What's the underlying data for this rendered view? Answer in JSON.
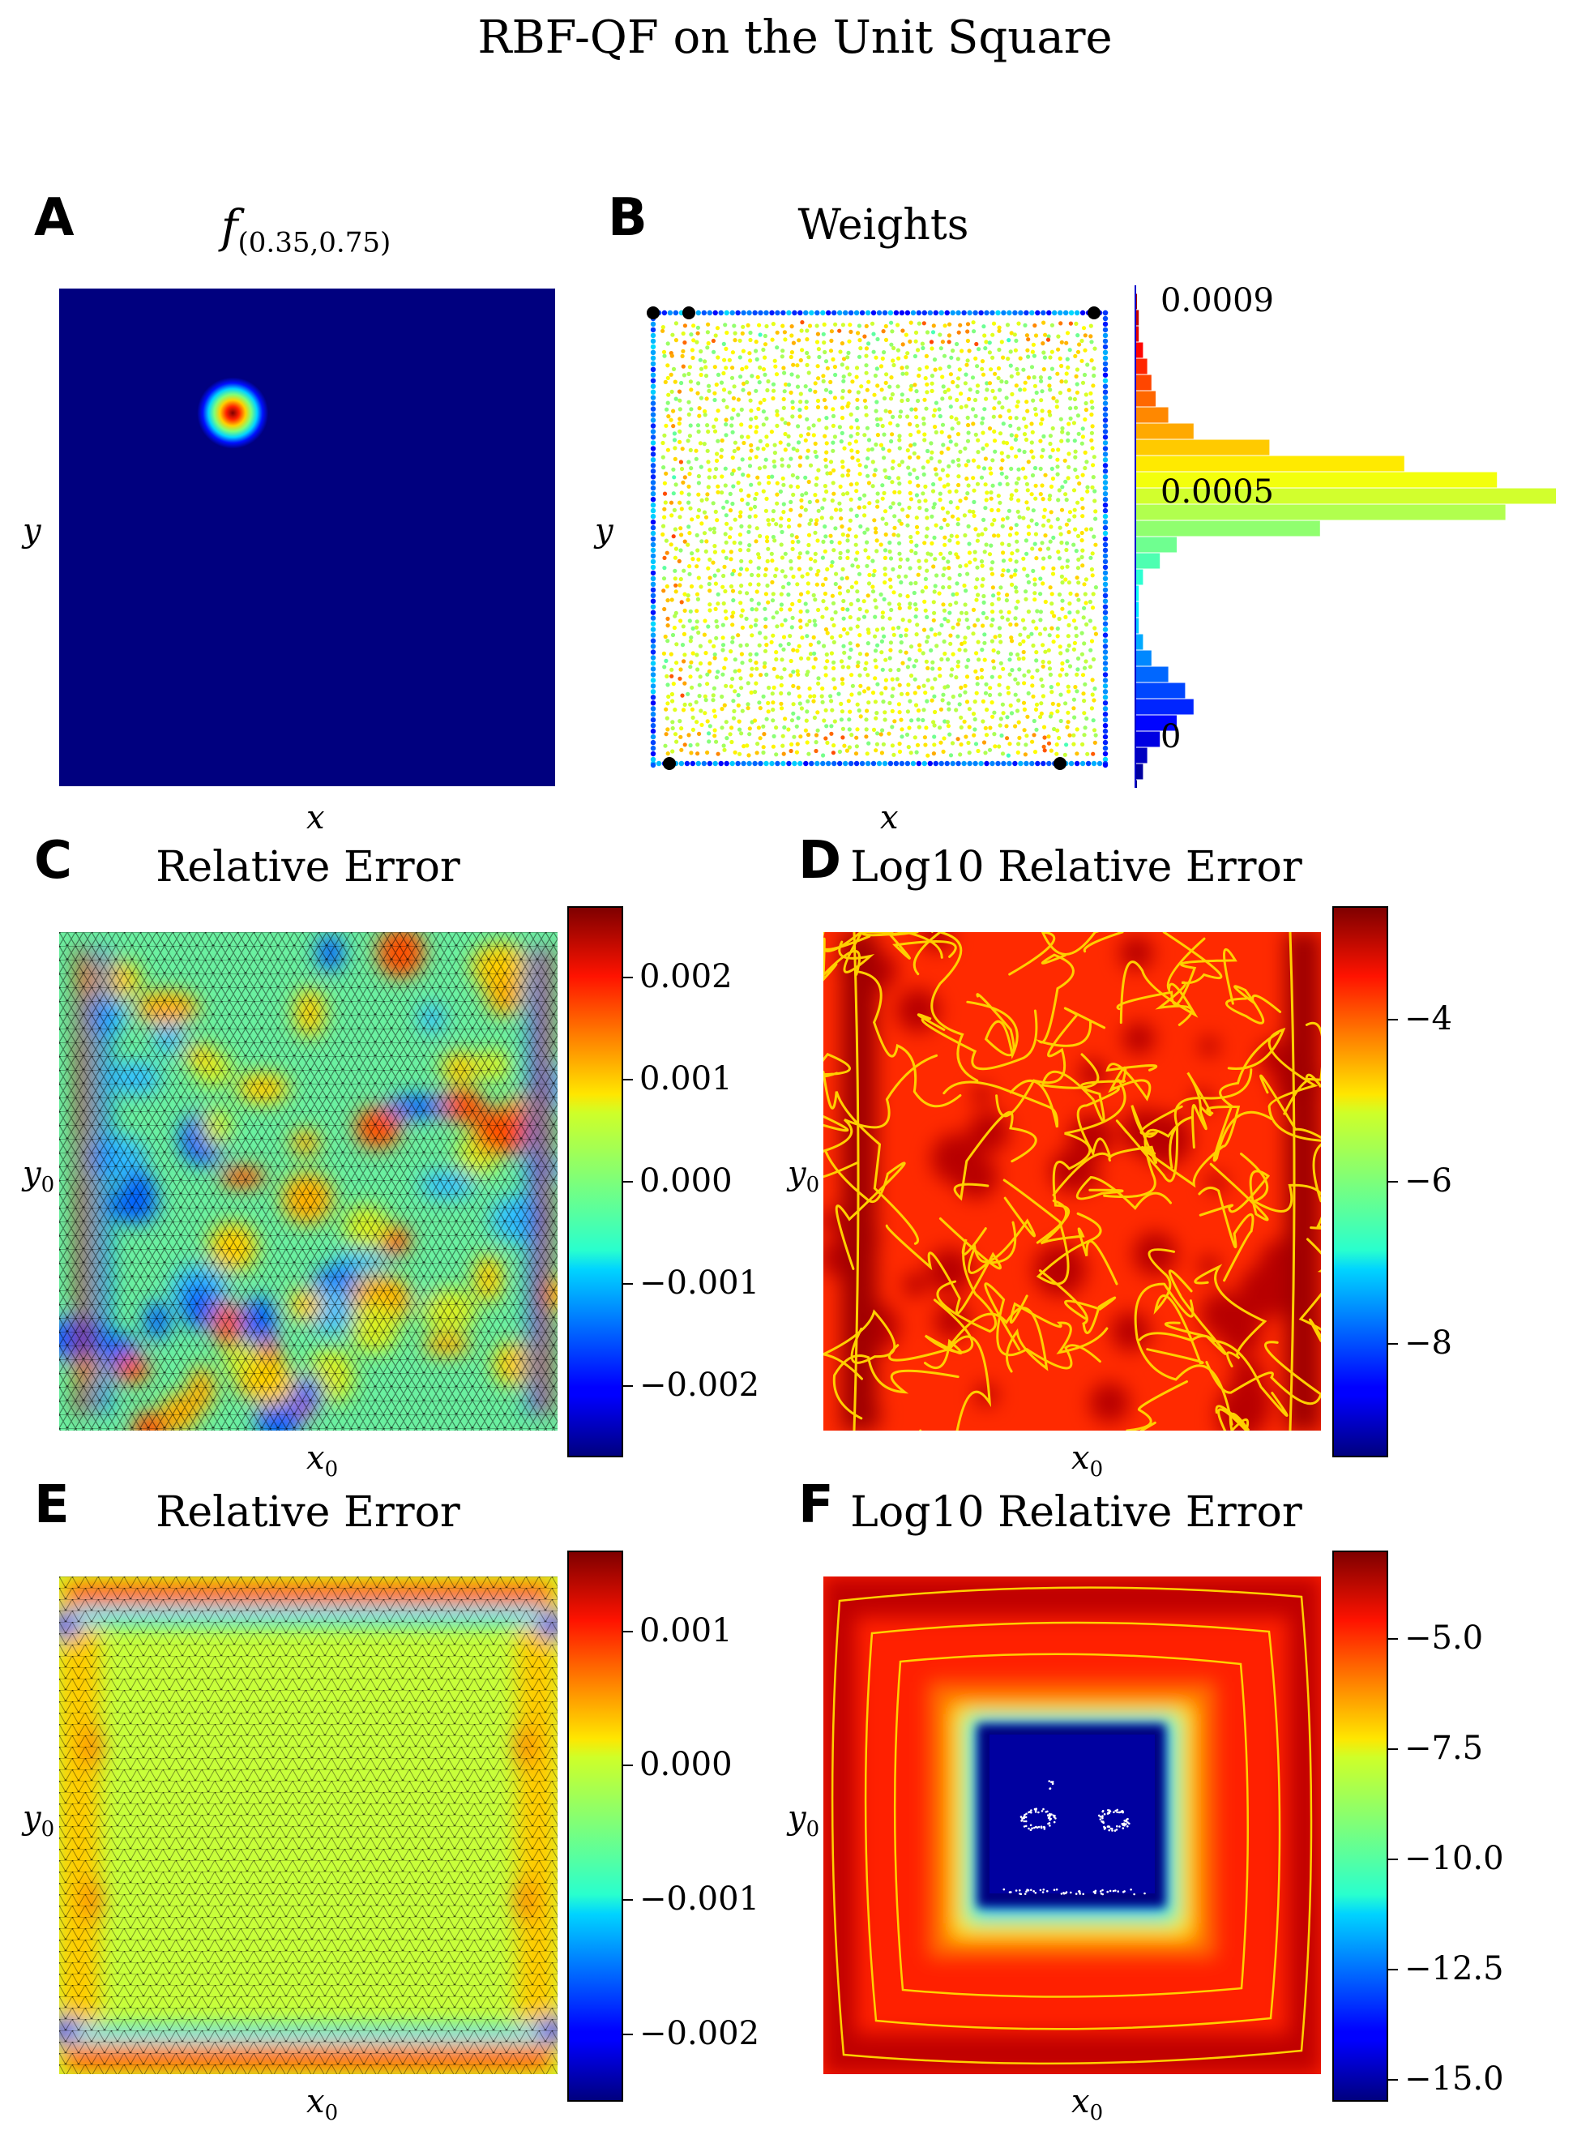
{
  "suptitle": "RBF-QF on the Unit Square",
  "colors": {
    "jet_bg": "#00007f"
  },
  "panels": {
    "A": {
      "letter": "A",
      "title_base": "f",
      "title_sub": "(0.35,0.75)",
      "xlabel": "x",
      "ylabel": "y"
    },
    "B": {
      "letter": "B",
      "title": "Weights",
      "xlabel": "x",
      "ylabel": "y"
    },
    "C": {
      "letter": "C",
      "title": "Relative Error",
      "xlabel_base": "x",
      "xlabel_sub": "0",
      "ylabel_base": "y",
      "ylabel_sub": "0"
    },
    "D": {
      "letter": "D",
      "title": "Log10 Relative Error",
      "xlabel_base": "x",
      "xlabel_sub": "0",
      "ylabel_base": "y",
      "ylabel_sub": "0"
    },
    "E": {
      "letter": "E",
      "title": "Relative Error",
      "xlabel_base": "x",
      "xlabel_sub": "0",
      "ylabel_base": "y",
      "ylabel_sub": "0"
    },
    "F": {
      "letter": "F",
      "title": "Log10 Relative Error",
      "xlabel_base": "x",
      "xlabel_sub": "0",
      "ylabel_base": "y",
      "ylabel_sub": "0"
    }
  },
  "chart_data": [
    {
      "panel": "A",
      "type": "heatmap",
      "function": "gaussian bump",
      "center": [
        0.35,
        0.75
      ],
      "xlim": [
        0,
        1
      ],
      "ylim": [
        0,
        1
      ],
      "colormap": "jet"
    },
    {
      "panel": "B",
      "type": "scatter",
      "colormap": "jet",
      "colorbar_type": "histogram",
      "colorbar_ticks": [
        "0.0009",
        "0.0005",
        "0"
      ],
      "histogram": {
        "bin_centers": [
          0.0,
          3e-05,
          6e-05,
          9e-05,
          0.00012,
          0.00015,
          0.00018,
          0.00021,
          0.00024,
          0.00027,
          0.0003,
          0.00033,
          0.00036,
          0.00039,
          0.00042,
          0.00045,
          0.00048,
          0.00051,
          0.00054,
          0.00057,
          0.0006,
          0.00063,
          0.00066,
          0.00069,
          0.00072,
          0.00075,
          0.00078,
          0.00081,
          0.00084,
          0.00087,
          0.0009
        ],
        "counts": [
          0.0,
          0.02,
          0.03,
          0.06,
          0.1,
          0.14,
          0.12,
          0.08,
          0.04,
          0.02,
          0.01,
          0.01,
          0.01,
          0.02,
          0.06,
          0.1,
          0.44,
          0.88,
          1.0,
          0.86,
          0.64,
          0.32,
          0.14,
          0.08,
          0.05,
          0.04,
          0.03,
          0.02,
          0.01,
          0.01,
          0.005
        ]
      },
      "highlighted_points": 5
    },
    {
      "panel": "C",
      "type": "heatmap",
      "colormap": "jet",
      "clim": [
        -0.0027,
        0.0027
      ],
      "colorbar_ticks": [
        "0.002",
        "0.001",
        "0.000",
        "−0.001",
        "−0.002"
      ]
    },
    {
      "panel": "D",
      "type": "heatmap",
      "colormap": "jet",
      "clim": [
        -9.4,
        -2.6
      ],
      "colorbar_ticks": [
        "−4",
        "−6",
        "−8"
      ]
    },
    {
      "panel": "E",
      "type": "heatmap",
      "colormap": "jet",
      "clim": [
        -0.0025,
        0.0016
      ],
      "colorbar_ticks": [
        "0.001",
        "0.000",
        "−0.001",
        "−0.002"
      ]
    },
    {
      "panel": "F",
      "type": "heatmap",
      "colormap": "jet",
      "clim": [
        -15.5,
        -3.0
      ],
      "colorbar_ticks": [
        "−5.0",
        "−7.5",
        "−10.0",
        "−12.5",
        "−15.0"
      ]
    }
  ]
}
